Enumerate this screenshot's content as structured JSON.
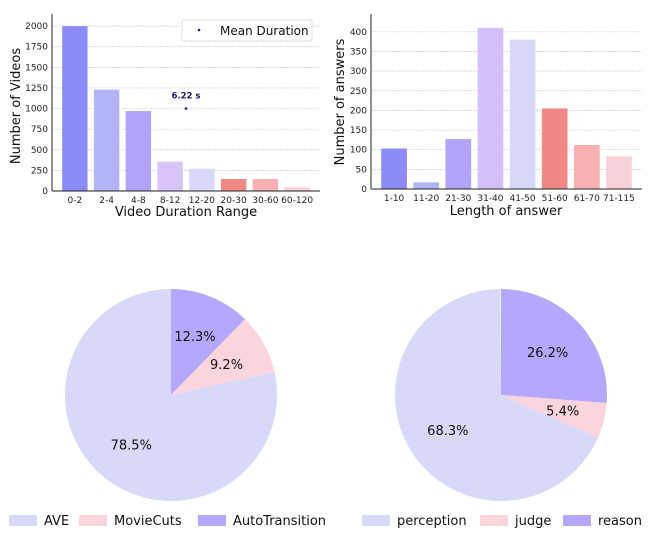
{
  "chart_data": [
    {
      "type": "bar",
      "xlabel": "Video Duration Range",
      "ylabel": "Number of Videos",
      "categories": [
        "0-2",
        "2-4",
        "4-8",
        "8-12",
        "12-20",
        "20-30",
        "30-60",
        "60-120"
      ],
      "values": [
        2000,
        1230,
        970,
        355,
        270,
        145,
        145,
        45
      ],
      "colors": [
        "#8c8cf8",
        "#b3b3f8",
        "#b0a4f8",
        "#d9c4f8",
        "#d8d8f8",
        "#f08888",
        "#f8b0b0",
        "#f8d0d8"
      ],
      "ylim": [
        0,
        2050
      ],
      "yticks": [
        0,
        250,
        500,
        750,
        1000,
        1250,
        1500,
        1750,
        2000
      ],
      "grid": true,
      "annotation": {
        "label": "6.22 s",
        "x_position_between": [
          "8-12",
          "12-20"
        ],
        "y": 1000,
        "color": "#1a1a6e"
      },
      "legend": {
        "entries": [
          "Mean Duration"
        ],
        "placement": "top-right"
      }
    },
    {
      "type": "bar",
      "xlabel": "Length of answer",
      "ylabel": "Number of answers",
      "categories": [
        "1-10",
        "11-20",
        "21-30",
        "31-40",
        "41-50",
        "51-60",
        "61-70",
        "71-115"
      ],
      "values": [
        103,
        17,
        127,
        410,
        380,
        205,
        112,
        83
      ],
      "colors": [
        "#8c8cf8",
        "#b3b3f8",
        "#b0a4f8",
        "#d4c0f8",
        "#d8d8f8",
        "#f08888",
        "#f8b0b0",
        "#f8d0d8"
      ],
      "ylim": [
        0,
        425
      ],
      "yticks": [
        0,
        50,
        100,
        150,
        200,
        250,
        300,
        350,
        400
      ],
      "grid": true
    },
    {
      "type": "pie",
      "labels": [
        "AutoTransition",
        "MovieCuts",
        "AVE"
      ],
      "values": [
        12.3,
        9.2,
        78.5
      ],
      "pct_labels": [
        "12.3%",
        "9.2%",
        "78.5%"
      ],
      "colors": [
        "#b4a8fc",
        "#fcd4dc",
        "#d8d8f8"
      ],
      "legend": {
        "entries": [
          "AVE",
          "MovieCuts",
          "AutoTransition"
        ],
        "placement": "bottom"
      }
    },
    {
      "type": "pie",
      "labels": [
        "reason",
        "judge",
        "perception"
      ],
      "values": [
        26.2,
        5.4,
        68.3
      ],
      "pct_labels": [
        "26.2%",
        "5.4%",
        "68.3%"
      ],
      "colors": [
        "#b4a8fc",
        "#fcd4dc",
        "#d8d8f8"
      ],
      "legend": {
        "entries": [
          "perception",
          "judge",
          "reason"
        ],
        "placement": "bottom"
      }
    }
  ]
}
